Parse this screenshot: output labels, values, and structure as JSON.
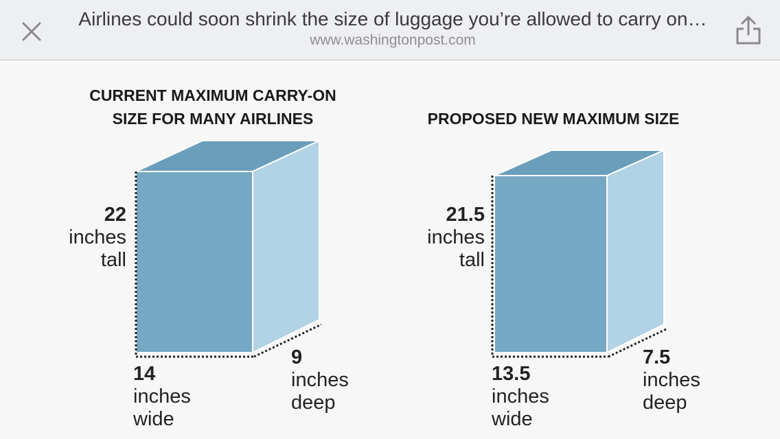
{
  "browser": {
    "title": "Airlines could soon shrink the size of luggage you’re allowed to carry on…",
    "url": "www.washingtonpost.com",
    "close_icon": "close-icon",
    "share_icon": "share-icon"
  },
  "infographic": {
    "colors": {
      "front": "#75a8c3",
      "side": "#b2d2e5",
      "top": "#6a9fbb",
      "edge": "#ffffff",
      "dash": "#222222"
    },
    "current": {
      "heading_line1": "CURRENT MAXIMUM CARRY-ON",
      "heading_line2": "SIZE FOR MANY AIRLINES",
      "tall": {
        "value": "22",
        "line1": "inches",
        "line2": "tall"
      },
      "wide": {
        "value": "14",
        "line1": "inches",
        "line2": "wide"
      },
      "deep": {
        "value": "9",
        "line1": "inches",
        "line2": "deep"
      }
    },
    "proposed": {
      "heading": "PROPOSED NEW MAXIMUM SIZE",
      "tall": {
        "value": "21.5",
        "line1": "inches",
        "line2": "tall"
      },
      "wide": {
        "value": "13.5",
        "line1": "inches",
        "line2": "wide"
      },
      "deep": {
        "value": "7.5",
        "line1": "inches",
        "line2": "deep"
      }
    }
  }
}
